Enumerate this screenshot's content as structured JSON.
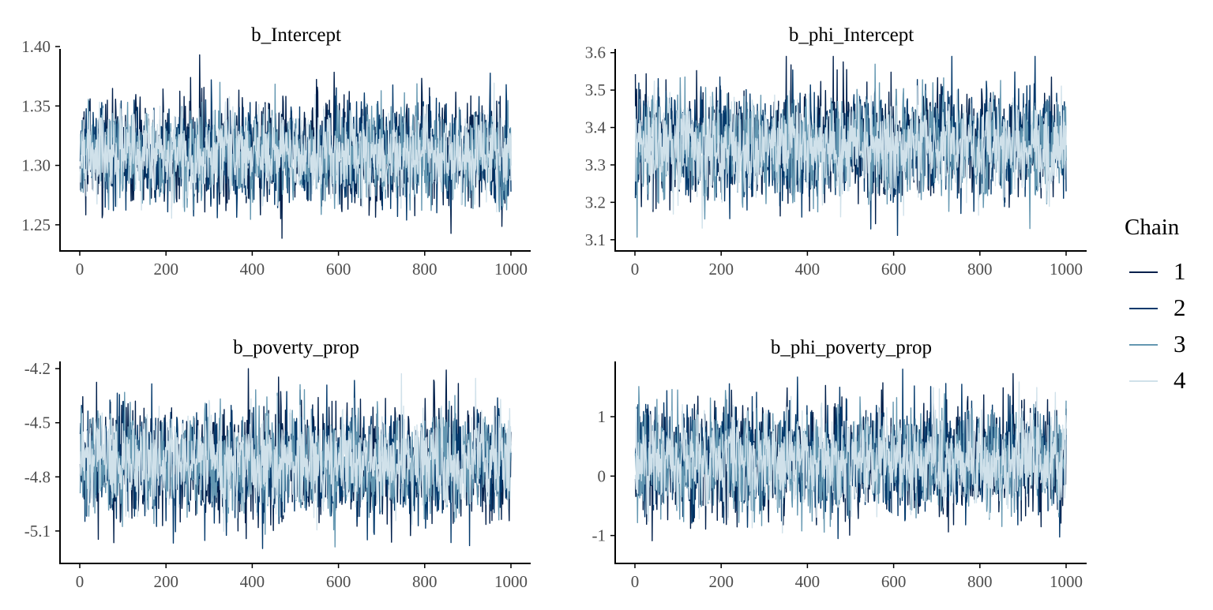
{
  "chart_data": [
    {
      "type": "line",
      "title": "b_Intercept",
      "xlim": [
        0,
        1000
      ],
      "ylim": [
        1.228,
        1.398
      ],
      "x_ticks": [
        "0",
        "200",
        "400",
        "600",
        "800",
        "1000"
      ],
      "y_ticks": [
        "1.25",
        "1.30",
        "1.35",
        "1.40"
      ],
      "series_summary": [
        {
          "name": "1",
          "mean": 1.31,
          "sd": 0.022
        },
        {
          "name": "2",
          "mean": 1.31,
          "sd": 0.02
        },
        {
          "name": "3",
          "mean": 1.31,
          "sd": 0.019
        },
        {
          "name": "4",
          "mean": 1.31,
          "sd": 0.018
        }
      ],
      "range": [
        1.234,
        1.393
      ]
    },
    {
      "type": "line",
      "title": "b_phi_Intercept",
      "xlim": [
        0,
        1000
      ],
      "ylim": [
        3.07,
        3.61
      ],
      "x_ticks": [
        "0",
        "200",
        "400",
        "600",
        "800",
        "1000"
      ],
      "y_ticks": [
        "3.1",
        "3.2",
        "3.3",
        "3.4",
        "3.5",
        "3.6"
      ],
      "series_summary": [
        {
          "name": "1",
          "mean": 3.35,
          "sd": 0.075
        },
        {
          "name": "2",
          "mean": 3.35,
          "sd": 0.07
        },
        {
          "name": "3",
          "mean": 3.35,
          "sd": 0.065
        },
        {
          "name": "4",
          "mean": 3.35,
          "sd": 0.06
        }
      ],
      "range": [
        3.09,
        3.59
      ]
    },
    {
      "type": "line",
      "title": "b_poverty_prop",
      "xlim": [
        0,
        1000
      ],
      "ylim": [
        -5.28,
        -4.16
      ],
      "x_ticks": [
        "0",
        "200",
        "400",
        "600",
        "800",
        "1000"
      ],
      "y_ticks": [
        "-5.1",
        "-4.8",
        "-4.5",
        "-4.2"
      ],
      "series_summary": [
        {
          "name": "1",
          "mean": -4.72,
          "sd": 0.16
        },
        {
          "name": "2",
          "mean": -4.72,
          "sd": 0.15
        },
        {
          "name": "3",
          "mean": -4.72,
          "sd": 0.14
        },
        {
          "name": "4",
          "mean": -4.72,
          "sd": 0.13
        }
      ],
      "range": [
        -5.24,
        -4.2
      ]
    },
    {
      "type": "line",
      "title": "b_phi_poverty_prop",
      "xlim": [
        0,
        1000
      ],
      "ylim": [
        -1.47,
        1.93
      ],
      "x_ticks": [
        "0",
        "200",
        "400",
        "600",
        "800",
        "1000"
      ],
      "y_ticks": [
        "-1",
        "0",
        "1"
      ],
      "series_summary": [
        {
          "name": "1",
          "mean": 0.25,
          "sd": 0.48
        },
        {
          "name": "2",
          "mean": 0.25,
          "sd": 0.45
        },
        {
          "name": "3",
          "mean": 0.25,
          "sd": 0.42
        },
        {
          "name": "4",
          "mean": 0.25,
          "sd": 0.4
        }
      ],
      "range": [
        -1.3,
        1.8
      ]
    }
  ],
  "legend": {
    "title": "Chain",
    "items": [
      {
        "label": "1",
        "color": "#011f4b"
      },
      {
        "label": "2",
        "color": "#03396c"
      },
      {
        "label": "3",
        "color": "#6497b1"
      },
      {
        "label": "4",
        "color": "#d0e1ea"
      }
    ]
  }
}
